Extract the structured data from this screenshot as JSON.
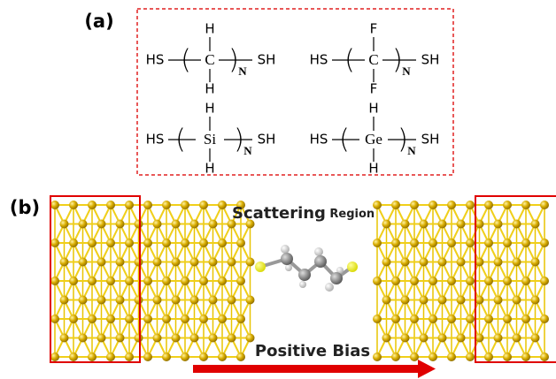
{
  "panel_a": {
    "label": "(a)",
    "molecules": [
      {
        "left": "HS",
        "top": "H",
        "center": "C",
        "bottom": "H",
        "subscript": "N",
        "right": "SH"
      },
      {
        "left": "HS",
        "top": "F",
        "center": "C",
        "bottom": "F",
        "subscript": "N",
        "right": "SH"
      },
      {
        "left": "HS",
        "top": "H",
        "center": "Si",
        "bottom": "H",
        "subscript": "N",
        "right": "SH"
      },
      {
        "left": "HS",
        "top": "H",
        "center": "Ge",
        "bottom": "H",
        "subscript": "N",
        "right": "SH"
      }
    ]
  },
  "panel_b": {
    "label": "(b)",
    "region_title": "Scattering",
    "region_subtitle": "Region",
    "bias_label": "Positive Bias"
  }
}
